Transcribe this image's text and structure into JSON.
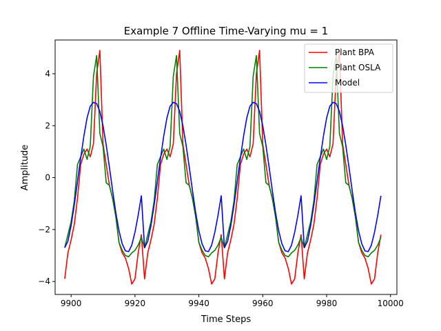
{
  "chart_data": {
    "type": "line",
    "title": "Example 7 Offline Time-Varying mu = 1",
    "xlabel": "Time Steps",
    "ylabel": "Amplitude",
    "xlim": [
      9895,
      10002
    ],
    "ylim": [
      -4.5,
      5.3
    ],
    "xticks": [
      9900,
      9920,
      9940,
      9960,
      9980,
      10000
    ],
    "yticks": [
      -4,
      -2,
      0,
      2,
      4
    ],
    "grid": false,
    "legend_position": "top-right",
    "period": 25,
    "x_start": 9898,
    "x_end": 9997,
    "series": [
      {
        "name": "Plant BPA",
        "color": "#ff0000",
        "cycle_values": [
          -3.9,
          -2.9,
          -2.4,
          -1.8,
          -0.8,
          0.5,
          0.9,
          1.1,
          0.8,
          1.3,
          4.0,
          4.9,
          1.3,
          0.5,
          -0.3,
          -0.8,
          -1.5,
          -2.5,
          -2.9,
          -3.1,
          -3.5,
          -4.1,
          -3.9,
          -2.9,
          -2.2
        ]
      },
      {
        "name": "Plant OSLA",
        "color": "#008000",
        "cycle_values": [
          -2.7,
          -2.2,
          -1.7,
          -0.9,
          0.5,
          0.8,
          1.1,
          0.7,
          1.2,
          3.9,
          4.7,
          1.7,
          1.2,
          -0.2,
          -0.3,
          -0.8,
          -1.5,
          -2.5,
          -2.8,
          -3.0,
          -3.05,
          -2.9,
          -2.8,
          -2.6,
          -2.3
        ]
      },
      {
        "name": "Model",
        "color": "#0000ff",
        "cycle_values": [
          -2.7,
          -2.45,
          -1.85,
          -1.05,
          -0.15,
          0.75,
          1.6,
          2.3,
          2.75,
          2.9,
          2.85,
          2.55,
          2.0,
          1.25,
          0.4,
          -0.5,
          -1.35,
          -2.05,
          -2.55,
          -2.82,
          -2.85,
          -2.6,
          -2.1,
          -1.45,
          -0.7
        ]
      }
    ]
  }
}
